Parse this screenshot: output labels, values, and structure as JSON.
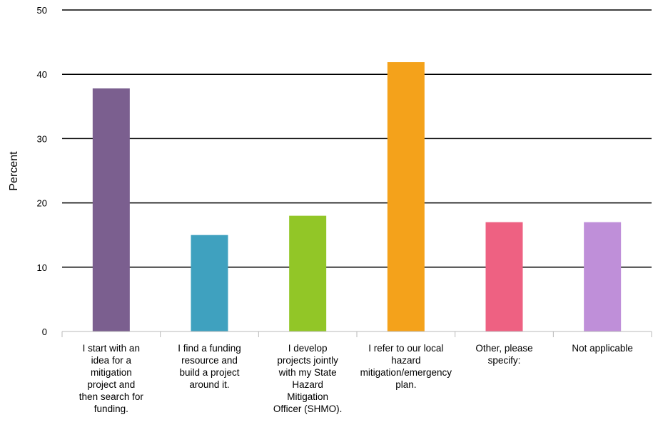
{
  "chart_data": {
    "type": "bar",
    "ylabel": "Percent",
    "ylim": [
      0,
      50
    ],
    "yticks": [
      "0",
      "10",
      "20",
      "30",
      "40",
      "50"
    ],
    "grid": true,
    "categories": [
      "I start with an\nidea for a\nmitigation\nproject and\nthen search for\nfunding.",
      "I find a funding\nresource and\nbuild a project\naround it.",
      "I develop\nprojects jointly\nwith my State\nHazard\nMitigation\nOfficer (SHMO).",
      "I refer to our local\nhazard\nmitigation/emergency\nplan.",
      "Other, please\nspecify:",
      "Not applicable"
    ],
    "values": [
      37.8,
      15.0,
      18.0,
      41.9,
      17.0,
      17.0
    ],
    "colors": [
      "#7b5f8f",
      "#3fa1bf",
      "#92c627",
      "#f4a21b",
      "#ee6182",
      "#bf8fd9"
    ]
  }
}
